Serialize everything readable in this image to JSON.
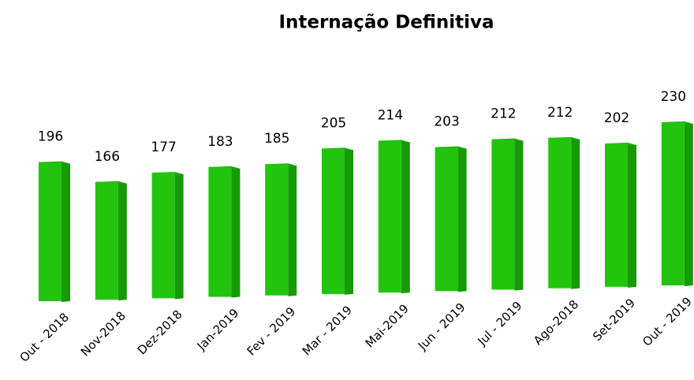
{
  "chart_data": {
    "type": "bar3d",
    "title": "Internação Definitiva",
    "categories": [
      "Out - 2018",
      "Nov-2018",
      "Dez-2018",
      "Jan-2019",
      "Fev - 2019",
      "Mar - 2019",
      "Mai-2019",
      "Jun - 2019",
      "Jul - 2019",
      "Ago-2018",
      "Set-2019",
      "Out - 2019"
    ],
    "values": [
      196,
      166,
      177,
      183,
      185,
      205,
      214,
      203,
      212,
      212,
      202,
      230
    ],
    "color": "#22c40e"
  }
}
